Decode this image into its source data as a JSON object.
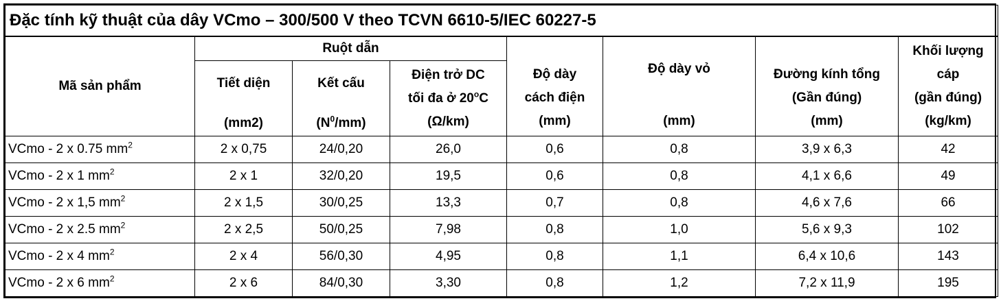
{
  "title": "Đặc tính kỹ thuật của dây VCmo – 300/500 V theo TCVN 6610-5/IEC 60227-5",
  "headers": {
    "product_code": "Mã sản phẩm",
    "conductor_group": "Ruột dẫn",
    "cross_section": {
      "line1": "Tiết diện",
      "line2": "(mm2)"
    },
    "structure": {
      "line1": "Kết cấu",
      "unit_pre": "(N",
      "unit_sup": "0",
      "unit_post": "/mm)"
    },
    "dc_resistance": {
      "line1": "Điện trở DC",
      "line2_pre": "tối đa ở 20",
      "line2_sup": "o",
      "line2_post": "C",
      "line3": "(Ω/km)"
    },
    "insulation_thickness": {
      "line1": "Độ dày",
      "line2": "cách điện",
      "line3": "(mm)"
    },
    "sheath_thickness": {
      "line1": "Độ dày vỏ",
      "line2": "(mm)"
    },
    "overall_diameter": {
      "line1": "Đường kính tổng",
      "line2": "(Gần đúng)",
      "line3": "(mm)"
    },
    "cable_weight": {
      "line1": "Khối lượng",
      "line2": "cáp",
      "line3": "(gần đúng)",
      "line4": "(kg/km)"
    }
  },
  "rows": [
    {
      "code": "VCmo - 2 x 0.75 mm",
      "code_sup": "2",
      "section": "2 x 0,75",
      "structure": "24/0,20",
      "resistance": "26,0",
      "insulation": "0,6",
      "sheath": "0,8",
      "diameter": "3,9 x 6,3",
      "weight": "42"
    },
    {
      "code": "VCmo - 2 x 1 mm",
      "code_sup": "2",
      "section": "2 x 1",
      "structure": "32/0,20",
      "resistance": "19,5",
      "insulation": "0,6",
      "sheath": "0,8",
      "diameter": "4,1 x 6,6",
      "weight": "49"
    },
    {
      "code": "VCmo - 2 x 1,5 mm",
      "code_sup": "2",
      "section": "2 x 1,5",
      "structure": "30/0,25",
      "resistance": "13,3",
      "insulation": "0,7",
      "sheath": "0,8",
      "diameter": "4,6 x 7,6",
      "weight": "66"
    },
    {
      "code": "VCmo - 2 x 2.5 mm",
      "code_sup": "2",
      "section": "2 x 2,5",
      "structure": "50/0,25",
      "resistance": "7,98",
      "insulation": "0,8",
      "sheath": "1,0",
      "diameter": "5,6 x 9,3",
      "weight": "102"
    },
    {
      "code": "VCmo - 2 x 4 mm",
      "code_sup": "2",
      "section": "2 x 4",
      "structure": "56/0,30",
      "resistance": "4,95",
      "insulation": "0,8",
      "sheath": "1,1",
      "diameter": "6,4 x 10,6",
      "weight": "143"
    },
    {
      "code": "VCmo - 2 x 6 mm",
      "code_sup": "2",
      "section": "2 x 6",
      "structure": "84/0,30",
      "resistance": "3,30",
      "insulation": "0,8",
      "sheath": "1,2",
      "diameter": "7,2 x 11,9",
      "weight": "195"
    }
  ]
}
